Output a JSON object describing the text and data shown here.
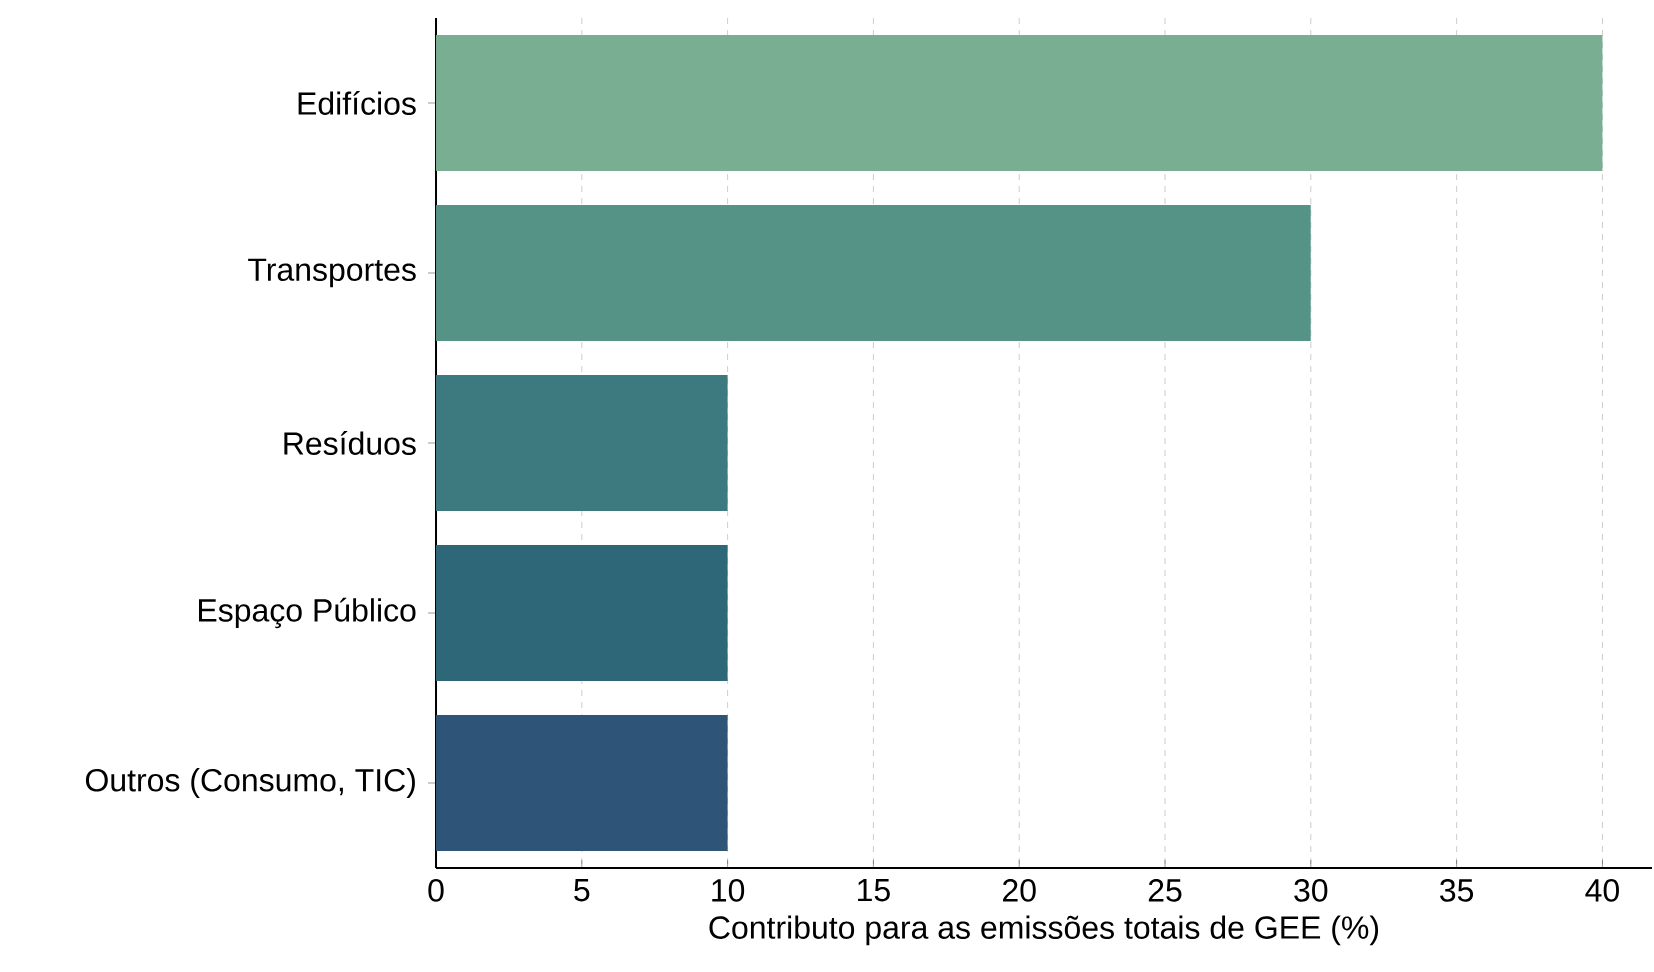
{
  "chart_data": {
    "type": "bar",
    "orientation": "horizontal",
    "xlabel": "Contributo para as emissões totais de GEE (%)",
    "categories": [
      "Edifícios",
      "Transportes",
      "Resíduos",
      "Espaço Público",
      "Outros (Consumo, TIC)"
    ],
    "values": [
      40,
      30,
      10,
      10,
      10
    ],
    "colors": [
      "#79ae92",
      "#559386",
      "#3d7a80",
      "#2e6878",
      "#2e5577"
    ],
    "xlim": [
      0,
      41.7
    ],
    "xticks": [
      0,
      5,
      10,
      15,
      20,
      25,
      30,
      35,
      40
    ],
    "grid": "x"
  }
}
